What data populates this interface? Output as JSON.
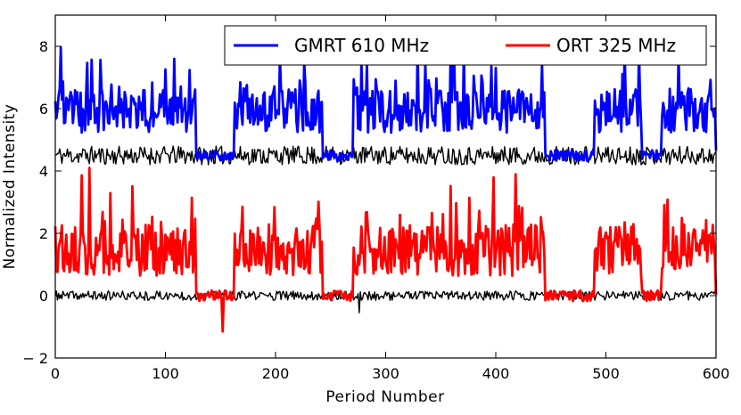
{
  "chart_data": {
    "type": "line",
    "title": "",
    "xlabel": "Period Number",
    "ylabel": "Normalized Intensity",
    "xlim": [
      0,
      600
    ],
    "ylim": [
      -2,
      9
    ],
    "xticks": [
      0,
      100,
      200,
      300,
      400,
      500,
      600
    ],
    "xtick_labels": [
      "0",
      "100",
      "200",
      "300",
      "400",
      "500",
      "600"
    ],
    "yticks": [
      -2,
      0,
      2,
      4,
      6,
      8
    ],
    "ytick_labels": [
      "− 2",
      "0",
      "2",
      "4",
      "6",
      "8"
    ],
    "grid": false,
    "legend": {
      "placement": "top-right",
      "ncol": 2
    },
    "series": [
      {
        "name": "GMRT 610 MHz",
        "color": "#0000ff",
        "in_legend": true,
        "baseline": 4.5,
        "active_mean": 5.8,
        "spread": 0.65,
        "peak": 7.6
      },
      {
        "name": "ORT 325 MHz",
        "color": "#ff0000",
        "in_legend": true,
        "baseline": 0.0,
        "active_mean": 1.3,
        "spread": 0.75,
        "peak": 4.1
      },
      {
        "name": "GMRT off-pulse noise",
        "color": "#000000",
        "in_legend": false,
        "baseline": 4.5,
        "spread": 0.3
      },
      {
        "name": "ORT off-pulse noise",
        "color": "#000000",
        "in_legend": false,
        "baseline": 0.0,
        "spread": 0.15
      }
    ],
    "null_intervals": [
      [
        0,
        0
      ],
      [
        128,
        163
      ],
      [
        243,
        271
      ],
      [
        445,
        490
      ],
      [
        533,
        551
      ]
    ],
    "active_intervals": [
      [
        0,
        128
      ],
      [
        163,
        243
      ],
      [
        271,
        445
      ],
      [
        490,
        533
      ],
      [
        551,
        600
      ]
    ],
    "notable_points": [
      {
        "series": "GMRT 610 MHz",
        "x": 108,
        "y": 7.6
      },
      {
        "series": "GMRT 610 MHz",
        "x": 226,
        "y": 7.5
      },
      {
        "series": "ORT 325 MHz",
        "x": 31,
        "y": 4.1
      },
      {
        "series": "ORT 325 MHz",
        "x": 152,
        "y": -1.15
      },
      {
        "series": "ORT off-pulse noise",
        "x": 276,
        "y": -0.55
      }
    ]
  }
}
